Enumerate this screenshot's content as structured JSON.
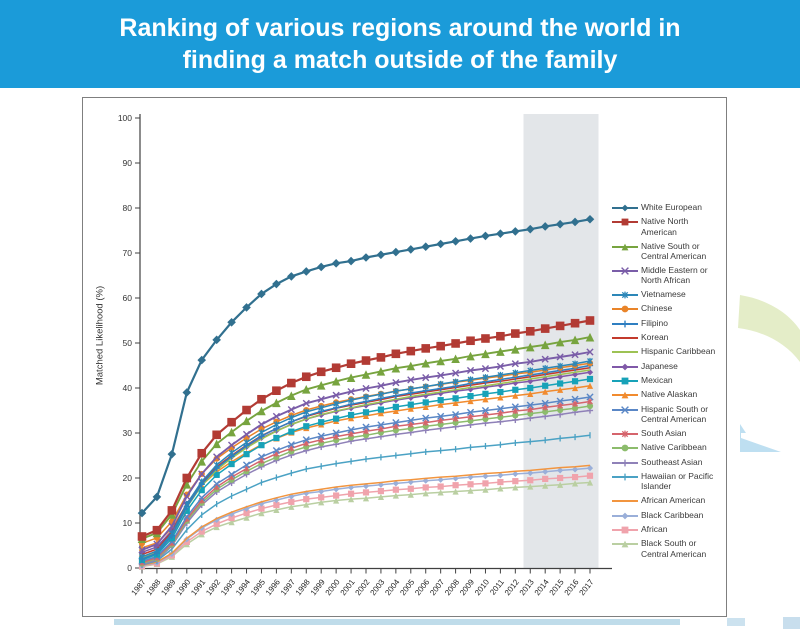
{
  "header": {
    "title": "Ranking of various regions around the world in finding a match outside of the family",
    "background_color": "#1B9BD9",
    "text_color": "#FFFFFF"
  },
  "chart": {
    "ylabel": "Matched Likelihood (%)",
    "projection_band": {
      "start_year": 2013,
      "end_year": 2017,
      "color": "#E3E6E9"
    }
  },
  "decor": {
    "swoosh_color": "#E4EDC8",
    "triangle_color": "#BEDFF1"
  },
  "chart_data": {
    "type": "line",
    "title": "",
    "xlabel": "",
    "ylabel": "Matched Likelihood (%)",
    "ylim": [
      0,
      100
    ],
    "ytick_step": 10,
    "grid": false,
    "legend_position": "right",
    "shaded_region_years": [
      2013,
      2017
    ],
    "x": [
      1987,
      1988,
      1989,
      1990,
      1991,
      1992,
      1993,
      1994,
      1995,
      1996,
      1997,
      1998,
      1999,
      2000,
      2001,
      2002,
      2003,
      2004,
      2005,
      2006,
      2007,
      2008,
      2009,
      2010,
      2011,
      2012,
      2013,
      2014,
      2015,
      2016,
      2017
    ],
    "series": [
      {
        "name": "White European",
        "color": "#31708F",
        "marker": "diamond",
        "values": [
          12.2,
          15.8,
          25.3,
          39.0,
          46.2,
          50.7,
          54.6,
          57.9,
          60.9,
          63.1,
          64.8,
          65.9,
          66.9,
          67.7,
          68.2,
          69.0,
          69.6,
          70.2,
          70.8,
          71.4,
          72.0,
          72.6,
          73.2,
          73.8,
          74.3,
          74.8,
          75.3,
          75.9,
          76.4,
          76.9,
          77.5
        ]
      },
      {
        "name": "Native North American",
        "color": "#B23B34",
        "marker": "square",
        "values": [
          7.0,
          8.4,
          12.8,
          20.0,
          25.5,
          29.6,
          32.4,
          35.1,
          37.5,
          39.4,
          41.1,
          42.5,
          43.6,
          44.5,
          45.4,
          46.1,
          46.8,
          47.6,
          48.2,
          48.8,
          49.3,
          49.9,
          50.5,
          51.0,
          51.5,
          52.1,
          52.6,
          53.2,
          53.8,
          54.4,
          55.0
        ]
      },
      {
        "name": "Native South or Central American",
        "color": "#77A43F",
        "marker": "triangle",
        "values": [
          6.5,
          7.8,
          11.9,
          18.6,
          23.7,
          27.6,
          30.2,
          32.7,
          34.9,
          36.7,
          38.3,
          39.7,
          40.6,
          41.5,
          42.3,
          43.0,
          43.7,
          44.4,
          44.9,
          45.5,
          46.0,
          46.5,
          47.1,
          47.6,
          48.1,
          48.6,
          49.1,
          49.6,
          50.2,
          50.7,
          51.3
        ]
      },
      {
        "name": "Middle Eastern or North African",
        "color": "#7A5DA8",
        "marker": "x",
        "values": [
          4.0,
          5.3,
          9.3,
          15.9,
          20.9,
          24.7,
          27.3,
          29.7,
          31.9,
          33.7,
          35.2,
          36.6,
          37.5,
          38.4,
          39.2,
          39.9,
          40.5,
          41.2,
          41.8,
          42.3,
          42.8,
          43.3,
          43.9,
          44.3,
          44.8,
          45.4,
          45.8,
          46.4,
          46.9,
          47.4,
          48.0
        ]
      },
      {
        "name": "Vietnamese",
        "color": "#2C87B8",
        "marker": "asterisk",
        "values": [
          2.5,
          3.8,
          7.7,
          14.2,
          19.2,
          22.9,
          25.6,
          27.9,
          30.1,
          31.9,
          33.4,
          34.7,
          35.6,
          36.5,
          37.3,
          38.0,
          38.6,
          39.3,
          39.8,
          40.3,
          40.9,
          41.4,
          41.9,
          42.4,
          42.9,
          43.4,
          43.9,
          44.4,
          44.9,
          45.4,
          46.0
        ]
      },
      {
        "name": "Chinese",
        "color": "#E98429",
        "marker": "circle",
        "values": [
          5.5,
          6.7,
          10.3,
          16.3,
          20.9,
          24.3,
          26.7,
          28.9,
          30.9,
          32.5,
          33.9,
          35.1,
          36.0,
          36.8,
          37.5,
          38.1,
          38.7,
          39.3,
          39.8,
          40.3,
          40.8,
          41.3,
          41.7,
          42.2,
          42.6,
          43.1,
          43.5,
          44.0,
          44.5,
          45.0,
          45.5
        ]
      },
      {
        "name": "Filipino",
        "color": "#2F7FC1",
        "marker": "plus",
        "values": [
          2.0,
          3.3,
          7.2,
          13.6,
          18.6,
          22.2,
          24.8,
          27.2,
          29.3,
          31.0,
          32.5,
          33.8,
          34.8,
          35.6,
          36.4,
          37.0,
          37.7,
          38.3,
          38.9,
          39.4,
          39.9,
          40.4,
          41.0,
          41.4,
          41.9,
          42.4,
          42.9,
          43.4,
          43.9,
          44.4,
          45.0
        ]
      },
      {
        "name": "Korean",
        "color": "#C33A2C",
        "marker": "none",
        "values": [
          3.0,
          4.2,
          8.0,
          14.2,
          19.0,
          22.5,
          25.0,
          27.3,
          29.4,
          31.0,
          32.5,
          33.7,
          34.6,
          35.5,
          36.2,
          36.8,
          37.4,
          38.1,
          38.6,
          39.1,
          39.6,
          40.1,
          40.6,
          41.1,
          41.5,
          42.0,
          42.5,
          43.0,
          43.5,
          44.0,
          44.5
        ]
      },
      {
        "name": "Hispanic Caribbean",
        "color": "#9DC254",
        "marker": "none",
        "values": [
          2.2,
          3.5,
          7.2,
          13.5,
          18.3,
          21.8,
          24.4,
          26.7,
          28.7,
          30.4,
          31.9,
          33.1,
          34.1,
          34.9,
          35.6,
          36.3,
          36.9,
          37.5,
          38.1,
          38.6,
          39.1,
          39.6,
          40.1,
          40.5,
          41.0,
          41.5,
          42.0,
          42.5,
          43.0,
          43.5,
          44.0
        ]
      },
      {
        "name": "Japanese",
        "color": "#8059A8",
        "marker": "diamond",
        "values": [
          3.5,
          4.7,
          8.3,
          14.3,
          18.9,
          22.3,
          24.7,
          26.9,
          28.9,
          30.5,
          31.9,
          33.1,
          34.0,
          34.8,
          35.5,
          36.1,
          36.7,
          37.3,
          37.8,
          38.3,
          38.8,
          39.3,
          39.7,
          40.2,
          40.6,
          41.1,
          41.5,
          42.0,
          42.5,
          43.0,
          43.5
        ]
      },
      {
        "name": "Mexican",
        "color": "#17A2B8",
        "marker": "square",
        "values": [
          1.8,
          3.0,
          6.6,
          12.7,
          17.3,
          20.7,
          23.1,
          25.3,
          27.3,
          28.9,
          30.3,
          31.5,
          32.4,
          33.2,
          34.0,
          34.6,
          35.2,
          35.8,
          36.3,
          36.8,
          37.3,
          37.7,
          38.2,
          38.7,
          39.1,
          39.6,
          40.0,
          40.5,
          41.0,
          41.5,
          42.0
        ]
      },
      {
        "name": "Native Alaskan",
        "color": "#F18B2F",
        "marker": "triangle",
        "values": [
          4.5,
          5.6,
          8.8,
          14.2,
          18.4,
          21.4,
          23.6,
          25.6,
          27.4,
          28.8,
          30.1,
          31.1,
          31.9,
          32.7,
          33.3,
          33.8,
          34.4,
          34.9,
          35.4,
          35.8,
          36.3,
          36.7,
          37.1,
          37.5,
          37.9,
          38.3,
          38.7,
          39.2,
          39.6,
          40.0,
          40.5
        ]
      },
      {
        "name": "Hispanic South or Central American",
        "color": "#5A87C6",
        "marker": "x",
        "values": [
          1.5,
          2.6,
          5.9,
          11.4,
          15.6,
          18.7,
          20.8,
          22.9,
          24.7,
          26.1,
          27.4,
          28.5,
          29.3,
          30.0,
          30.7,
          31.3,
          31.8,
          32.3,
          32.8,
          33.3,
          33.7,
          34.1,
          34.6,
          35.0,
          35.4,
          35.8,
          36.2,
          36.6,
          37.1,
          37.5,
          38.0
        ]
      },
      {
        "name": "South Asian",
        "color": "#D5646C",
        "marker": "asterisk",
        "values": [
          1.2,
          2.3,
          5.5,
          10.9,
          15.0,
          18.0,
          20.2,
          22.1,
          23.9,
          25.4,
          26.6,
          27.7,
          28.5,
          29.2,
          29.8,
          30.4,
          30.9,
          31.5,
          31.9,
          32.3,
          32.8,
          33.2,
          33.6,
          34.0,
          34.4,
          34.9,
          35.2,
          35.7,
          36.1,
          36.5,
          37.0
        ]
      },
      {
        "name": "Native Caribbean",
        "color": "#8CBC6C",
        "marker": "circle",
        "values": [
          1.0,
          2.1,
          5.2,
          10.5,
          14.5,
          17.5,
          19.6,
          21.5,
          23.2,
          24.6,
          25.9,
          26.9,
          27.7,
          28.4,
          29.0,
          29.5,
          30.1,
          30.6,
          31.0,
          31.5,
          31.9,
          32.3,
          32.7,
          33.1,
          33.5,
          33.9,
          34.3,
          34.7,
          35.1,
          35.5,
          36.0
        ]
      },
      {
        "name": "Southeast Asian",
        "color": "#8F81B8",
        "marker": "plus",
        "values": [
          0.8,
          1.8,
          4.9,
          10.0,
          14.0,
          16.9,
          18.9,
          20.8,
          22.5,
          23.9,
          25.1,
          26.1,
          26.9,
          27.5,
          28.2,
          28.7,
          29.2,
          29.7,
          30.1,
          30.6,
          31.0,
          31.4,
          31.8,
          32.2,
          32.5,
          32.9,
          33.3,
          33.7,
          34.1,
          34.6,
          35.0
        ]
      },
      {
        "name": "Hawaiian or Pacific Islander",
        "color": "#4BA2C4",
        "marker": "tick",
        "values": [
          0.7,
          1.6,
          4.2,
          8.5,
          11.8,
          14.2,
          16.0,
          17.5,
          19.0,
          20.1,
          21.1,
          22.0,
          22.6,
          23.2,
          23.7,
          24.2,
          24.6,
          25.0,
          25.4,
          25.8,
          26.1,
          26.4,
          26.8,
          27.1,
          27.4,
          27.8,
          28.1,
          28.4,
          28.8,
          29.1,
          29.5
        ]
      },
      {
        "name": "African American",
        "color": "#F2953F",
        "marker": "none",
        "values": [
          0.6,
          1.3,
          3.3,
          6.6,
          9.1,
          11.0,
          12.4,
          13.6,
          14.7,
          15.6,
          16.4,
          17.0,
          17.5,
          18.0,
          18.4,
          18.7,
          19.0,
          19.4,
          19.6,
          19.9,
          20.2,
          20.4,
          20.7,
          21.0,
          21.2,
          21.5,
          21.7,
          22.0,
          22.3,
          22.5,
          22.8
        ]
      },
      {
        "name": "Black Caribbean",
        "color": "#9AAFD9",
        "marker": "diamond",
        "values": [
          0.5,
          1.2,
          3.1,
          6.4,
          8.9,
          10.7,
          12.0,
          13.2,
          14.3,
          15.1,
          15.9,
          16.6,
          17.0,
          17.5,
          17.9,
          18.2,
          18.5,
          18.8,
          19.1,
          19.4,
          19.6,
          19.9,
          20.2,
          20.4,
          20.6,
          20.9,
          21.1,
          21.4,
          21.7,
          21.9,
          22.2
        ]
      },
      {
        "name": "African",
        "color": "#F0A3AC",
        "marker": "square",
        "values": [
          0.4,
          1.0,
          2.8,
          5.8,
          8.1,
          9.8,
          11.1,
          12.2,
          13.2,
          14.0,
          14.7,
          15.3,
          15.7,
          16.1,
          16.5,
          16.8,
          17.1,
          17.4,
          17.6,
          17.9,
          18.1,
          18.4,
          18.6,
          18.8,
          19.1,
          19.3,
          19.5,
          19.8,
          20.0,
          20.2,
          20.5
        ]
      },
      {
        "name": "Black South or Central American",
        "color": "#BACFA2",
        "marker": "triangle",
        "values": [
          0.3,
          0.9,
          2.5,
          5.3,
          7.5,
          9.1,
          10.2,
          11.2,
          12.2,
          12.9,
          13.6,
          14.1,
          14.6,
          15.0,
          15.3,
          15.5,
          15.8,
          16.1,
          16.3,
          16.6,
          16.8,
          17.0,
          17.2,
          17.4,
          17.7,
          17.9,
          18.1,
          18.3,
          18.5,
          18.8,
          19.0
        ]
      }
    ]
  }
}
